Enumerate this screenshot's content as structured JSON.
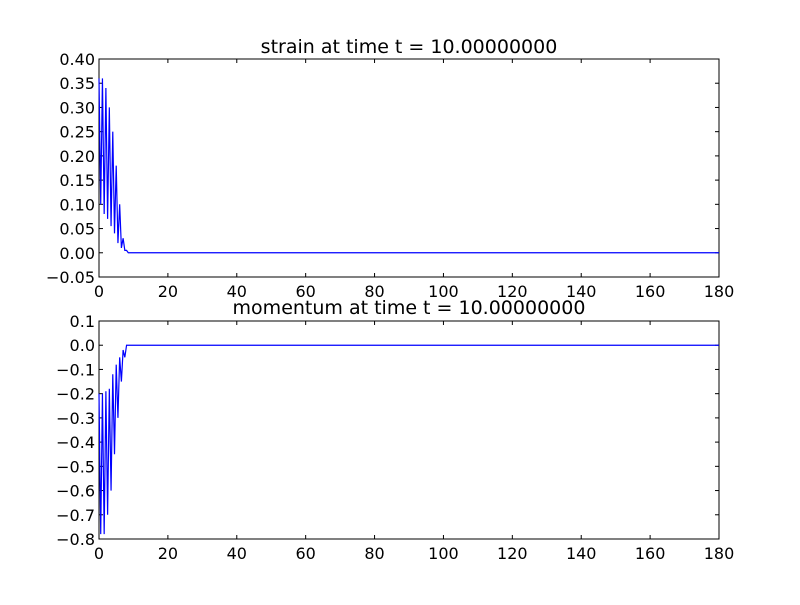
{
  "chart_data": [
    {
      "type": "line",
      "title": "strain at time t =    10.00000000",
      "xlabel": "",
      "ylabel": "",
      "xlim": [
        0,
        180
      ],
      "ylim": [
        -0.05,
        0.4
      ],
      "xticks": [
        0,
        20,
        40,
        60,
        80,
        100,
        120,
        140,
        160,
        180
      ],
      "yticks": [
        -0.05,
        0.0,
        0.05,
        0.1,
        0.15,
        0.2,
        0.25,
        0.3,
        0.35,
        0.4
      ],
      "xtick_labels": [
        "0",
        "20",
        "40",
        "60",
        "80",
        "100",
        "120",
        "140",
        "160",
        "180"
      ],
      "ytick_labels": [
        "−0.05",
        "0.00",
        "0.05",
        "0.10",
        "0.15",
        "0.20",
        "0.25",
        "0.30",
        "0.35",
        "0.40"
      ],
      "grid": false,
      "line_color": "#0000ff",
      "series": [
        {
          "x": [
            0.0,
            0.5,
            1.0,
            1.5,
            2.0,
            2.5,
            3.0,
            3.5,
            4.0,
            4.5,
            5.0,
            5.5,
            6.0,
            6.5,
            7.0,
            7.5,
            8.0,
            8.5,
            9.0,
            10.0,
            20.0,
            40.0,
            60.0,
            80.0,
            100.0,
            120.0,
            140.0,
            160.0,
            180.0
          ],
          "y": [
            0.36,
            0.1,
            0.36,
            0.08,
            0.34,
            0.07,
            0.3,
            0.055,
            0.25,
            0.04,
            0.18,
            0.02,
            0.1,
            0.01,
            0.03,
            0.005,
            0.005,
            0.0,
            0.0,
            0.0,
            0.0,
            0.0,
            0.0,
            0.0,
            0.0,
            0.0,
            0.0,
            0.0,
            0.0
          ]
        }
      ]
    },
    {
      "type": "line",
      "title": "momentum at time t =    10.00000000",
      "xlabel": "",
      "ylabel": "",
      "xlim": [
        0,
        180
      ],
      "ylim": [
        -0.8,
        0.1
      ],
      "xticks": [
        0,
        20,
        40,
        60,
        80,
        100,
        120,
        140,
        160,
        180
      ],
      "yticks": [
        -0.8,
        -0.7,
        -0.6,
        -0.5,
        -0.4,
        -0.3,
        -0.2,
        -0.1,
        0.0,
        0.1
      ],
      "xtick_labels": [
        "0",
        "20",
        "40",
        "60",
        "80",
        "100",
        "120",
        "140",
        "160",
        "180"
      ],
      "ytick_labels": [
        "−0.8",
        "−0.7",
        "−0.6",
        "−0.5",
        "−0.4",
        "−0.3",
        "−0.2",
        "−0.1",
        "0.0",
        "0.1"
      ],
      "grid": false,
      "line_color": "#0000ff",
      "series": [
        {
          "x": [
            0.0,
            0.5,
            1.0,
            1.5,
            2.0,
            2.5,
            3.0,
            3.5,
            4.0,
            4.5,
            5.0,
            5.5,
            6.0,
            6.5,
            7.0,
            7.5,
            8.0,
            8.5,
            9.0,
            10.0,
            20.0,
            40.0,
            60.0,
            80.0,
            100.0,
            120.0,
            140.0,
            160.0,
            180.0
          ],
          "y": [
            -0.2,
            -0.78,
            -0.2,
            -0.78,
            -0.19,
            -0.7,
            -0.18,
            -0.6,
            -0.12,
            -0.45,
            -0.08,
            -0.3,
            -0.05,
            -0.15,
            -0.02,
            -0.05,
            0.0,
            0.0,
            0.0,
            0.0,
            0.0,
            0.0,
            0.0,
            0.0,
            0.0,
            0.0,
            0.0,
            0.0,
            0.0
          ]
        }
      ]
    }
  ]
}
